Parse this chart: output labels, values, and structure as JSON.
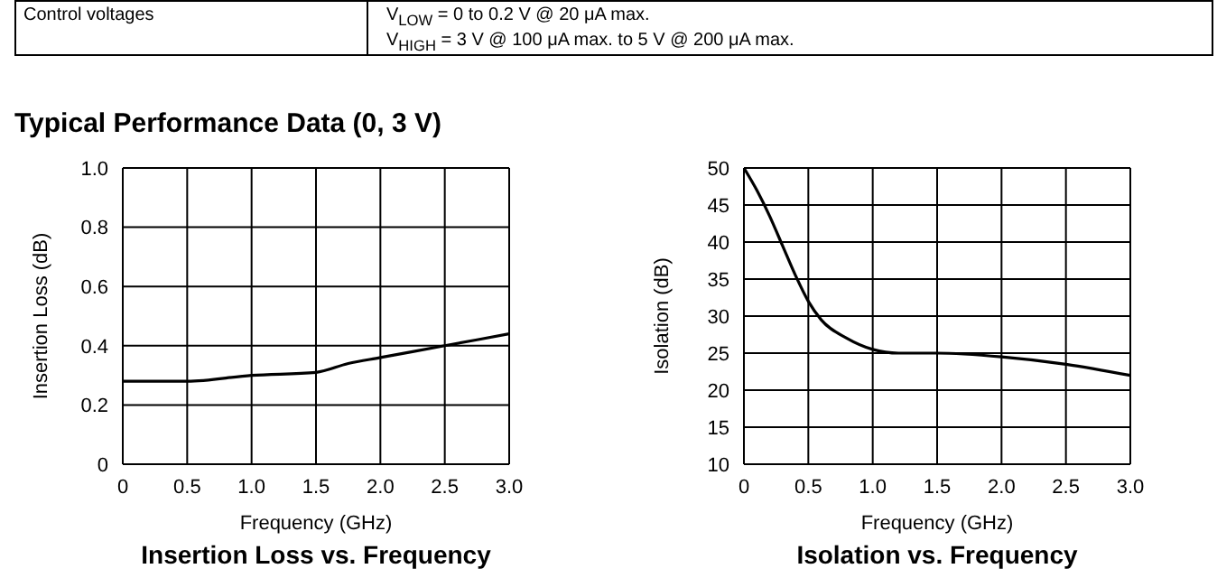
{
  "chart_data": [
    {
      "type": "other",
      "title": "Typical Performance Data (0, 3 V)",
      "annotations": [
        "Control voltages",
        "V$_{LOW}$ = 0 to 0.2 V @ 20 μA max.",
        "V$_{HIGH}$ = 3 V @ 100 μA max. to 5 V @ 200 μA max."
      ]
    },
    {
      "type": "line",
      "title": "Insertion Loss vs. Frequency",
      "xlabel": "Frequency (GHz)",
      "ylabel": "Insertion Loss (dB)",
      "xlim": [
        0,
        3
      ],
      "xticks": [
        0,
        {
          "value": 0.5,
          "label": "0.5"
        },
        {
          "value": 1,
          "label": "1.0"
        },
        {
          "value": 1.5,
          "label": "1.5"
        },
        {
          "value": 2,
          "label": "2.0"
        },
        {
          "value": 2.5,
          "label": "2.5"
        },
        {
          "value": 3,
          "label": "3.0"
        }
      ],
      "ylim": [
        0,
        1
      ],
      "yticks": [
        0,
        {
          "value": 0.2,
          "label": "0.2"
        },
        {
          "value": 0.4,
          "label": "0.4"
        },
        {
          "value": 0.6,
          "label": "0.6"
        },
        {
          "value": 0.8,
          "label": "0.8"
        },
        {
          "value": 1,
          "label": "1.0"
        }
      ],
      "grid": true,
      "legend": false,
      "marker": "none",
      "line_style": "solid",
      "series": [
        {
          "color": "#000000",
          "x": [
            0,
            0.5,
            1.0,
            1.5,
            1.75,
            2.0,
            2.5,
            3.0
          ],
          "values": [
            0.28,
            0.28,
            0.3,
            0.31,
            0.34,
            0.36,
            0.4,
            0.44
          ]
        }
      ]
    },
    {
      "type": "line",
      "title": "Isolation vs. Frequency",
      "xlabel": "Frequency (GHz)",
      "ylabel": "Isolation (dB)",
      "xlim": [
        0,
        3
      ],
      "xticks": [
        0,
        {
          "value": 0.5,
          "label": "0.5"
        },
        {
          "value": 1,
          "label": "1.0"
        },
        {
          "value": 1.5,
          "label": "1.5"
        },
        {
          "value": 2,
          "label": "2.0"
        },
        {
          "value": 2.5,
          "label": "2.5"
        },
        {
          "value": 3,
          "label": "3.0"
        }
      ],
      "ylim": [
        10,
        50
      ],
      "yticks": [
        10,
        15,
        20,
        25,
        30,
        35,
        40,
        45,
        50
      ],
      "grid": true,
      "legend": false,
      "marker": "none",
      "line_style": "solid",
      "series": [
        {
          "color": "#000000",
          "x": [
            0,
            0.1,
            0.2,
            0.3,
            0.4,
            0.5,
            0.6,
            0.8,
            1.0,
            1.2,
            1.5,
            2.0,
            2.5,
            3.0
          ],
          "values": [
            50,
            47,
            43.5,
            39.5,
            35.5,
            32,
            29.5,
            27,
            25.5,
            25,
            25,
            24.5,
            23.5,
            22
          ]
        }
      ]
    }
  ]
}
